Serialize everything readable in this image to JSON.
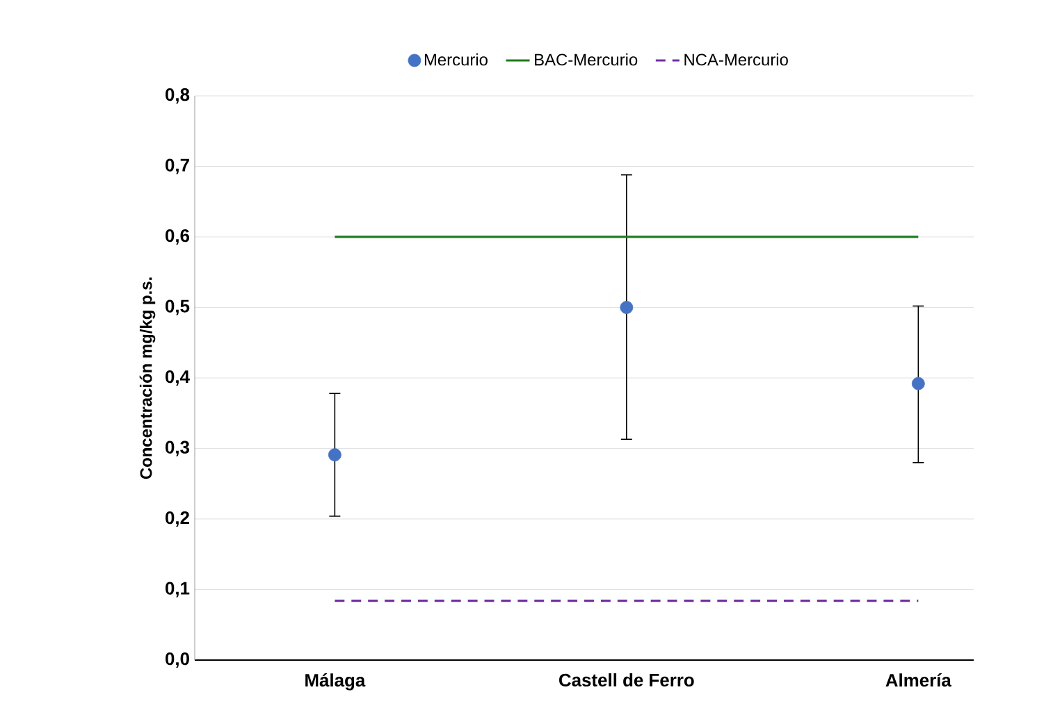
{
  "chart_data": {
    "type": "scatter",
    "ylabel": "Concentración mg/kg p.s.",
    "categories": [
      "Málaga",
      "Castell de Ferro",
      "Almería"
    ],
    "series": [
      {
        "name": "Mercurio",
        "color": "#4472c4",
        "marker": "circle",
        "values": [
          0.291,
          0.5,
          0.392
        ],
        "errors": [
          [
            0.204,
            0.378
          ],
          [
            0.313,
            0.688
          ],
          [
            0.28,
            0.502
          ]
        ]
      },
      {
        "name": "BAC-Mercurio",
        "type": "line",
        "color": "#1e7b1e",
        "marker": "none",
        "line_style": "solid",
        "values": [
          0.6,
          0.6,
          0.6
        ]
      },
      {
        "name": "NCA-Mercurio",
        "type": "line",
        "color": "#7030a0",
        "marker": "none",
        "line_style": "dashed",
        "values": [
          0.084,
          0.084,
          0.084
        ]
      }
    ],
    "ylim": [
      0,
      0.8
    ],
    "yticks": [
      {
        "value": 0,
        "label": "0,0"
      },
      {
        "value": 0.1,
        "label": "0,1"
      },
      {
        "value": 0.2,
        "label": "0,2"
      },
      {
        "value": 0.3,
        "label": "0,3"
      },
      {
        "value": 0.4,
        "label": "0,4"
      },
      {
        "value": 0.5,
        "label": "0,5"
      },
      {
        "value": 0.6,
        "label": "0,6"
      },
      {
        "value": 0.7,
        "label": "0,7"
      },
      {
        "value": 0.8,
        "label": "0,8"
      }
    ],
    "grid": "y",
    "legend": "top"
  }
}
